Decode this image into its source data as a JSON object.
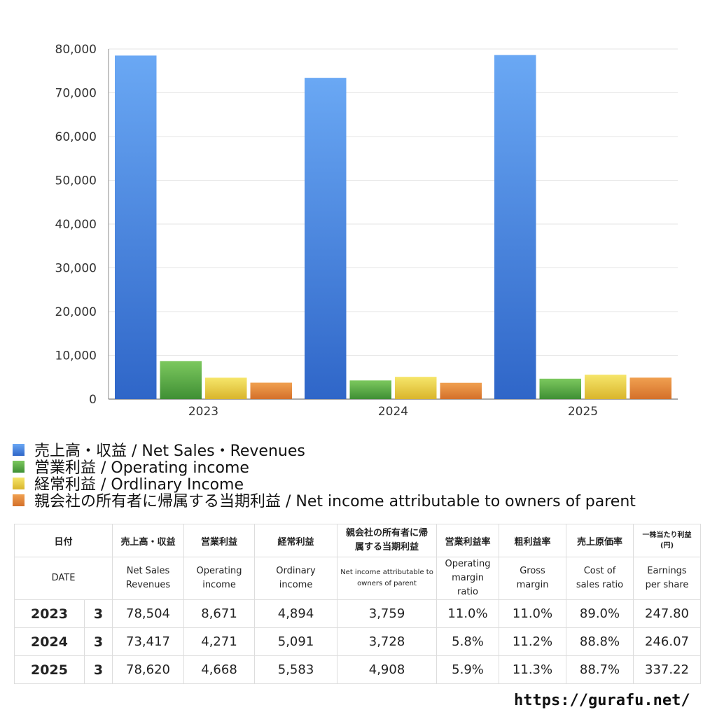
{
  "chart_data": {
    "type": "bar",
    "categories": [
      "2023",
      "2024",
      "2025"
    ],
    "series": [
      {
        "name": "売上高・収益 / Net Sales・Revenues",
        "values": [
          78504,
          73417,
          78620
        ],
        "color_top": "#6aa8f4",
        "color_bottom": "#2f66c8"
      },
      {
        "name": "営業利益 / Operating income",
        "values": [
          8671,
          4271,
          4668
        ],
        "color_top": "#7cc85e",
        "color_bottom": "#3f8f34"
      },
      {
        "name": "経常利益 / Ordlinary Income",
        "values": [
          4894,
          5091,
          5583
        ],
        "color_top": "#f6e66a",
        "color_bottom": "#d9b52c"
      },
      {
        "name": "親会社の所有者に帰属する当期利益 / Net income attributable to owners of parent",
        "values": [
          3759,
          3728,
          4908
        ],
        "color_top": "#f0a050",
        "color_bottom": "#d4702a"
      }
    ],
    "ylim": [
      0,
      80000
    ],
    "yticks": [
      "0",
      "10,000",
      "20,000",
      "30,000",
      "40,000",
      "50,000",
      "60,000",
      "70,000",
      "80,000"
    ],
    "grid": true,
    "legend_position": "bottom-left"
  },
  "table": {
    "headers_jp": [
      "日付",
      "売上高・収益",
      "営業利益",
      "経常利益",
      "親会社の所有者に帰属する当期利益",
      "営業利益率",
      "粗利益率",
      "売上原価率",
      "一株当たり利益(円)"
    ],
    "headers_en": [
      "DATE",
      "Net Sales Revenues",
      "Operating income",
      "Ordinary income",
      "Net income attributable to owners of parent",
      "Operating margin ratio",
      "Gross margin",
      "Cost of sales ratio",
      "Earnings per share"
    ],
    "rows": [
      {
        "year": "2023",
        "month": "3",
        "sales": "78,504",
        "op": "8,671",
        "ord": "4,894",
        "net": "3,759",
        "opm": "11.0%",
        "gm": "11.0%",
        "cos": "89.0%",
        "eps": "247.80"
      },
      {
        "year": "2024",
        "month": "3",
        "sales": "73,417",
        "op": "4,271",
        "ord": "5,091",
        "net": "3,728",
        "opm": "5.8%",
        "gm": "11.2%",
        "cos": "88.8%",
        "eps": "246.07"
      },
      {
        "year": "2025",
        "month": "3",
        "sales": "78,620",
        "op": "4,668",
        "ord": "5,583",
        "net": "4,908",
        "opm": "5.9%",
        "gm": "11.3%",
        "cos": "88.7%",
        "eps": "337.22"
      }
    ]
  },
  "footer": {
    "url": "https://gurafu.net/"
  }
}
